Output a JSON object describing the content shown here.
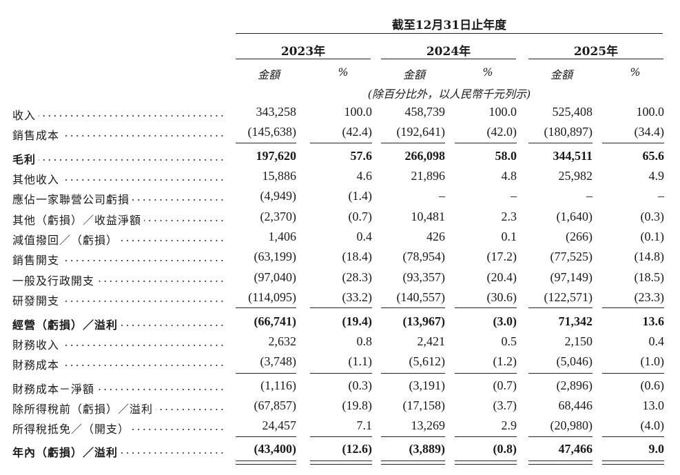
{
  "header": {
    "period": "截至12月31日止年度",
    "years": [
      "2023年",
      "2024年",
      "2025年"
    ],
    "amount_label": "金額",
    "pct_label": "%",
    "note": "(除百分比外，以人民幣千元列示)"
  },
  "rows": [
    {
      "label": "收入",
      "bold": false,
      "values": [
        "343,258",
        "100.0",
        "458,739",
        "100.0",
        "525,408",
        "100.0"
      ]
    },
    {
      "label": "銷售成本",
      "bold": false,
      "values": [
        "(145,638)",
        "(42.4)",
        "(192,641)",
        "(42.0)",
        "(180,897)",
        "(34.4)"
      ]
    },
    {
      "label": "毛利",
      "bold": true,
      "values": [
        "197,620",
        "57.6",
        "266,098",
        "58.0",
        "344,511",
        "65.6"
      ]
    },
    {
      "label": "其他收入",
      "bold": false,
      "values": [
        "15,886",
        "4.6",
        "21,896",
        "4.8",
        "25,982",
        "4.9"
      ]
    },
    {
      "label": "應佔一家聯營公司虧損",
      "bold": false,
      "values": [
        "(4,949)",
        "(1.4)",
        "–",
        "–",
        "–",
        "–"
      ]
    },
    {
      "label": "其他（虧損）／收益淨額",
      "bold": false,
      "values": [
        "(2,370)",
        "(0.7)",
        "10,481",
        "2.3",
        "(1,640)",
        "(0.3)"
      ]
    },
    {
      "label": "減值撥回／（虧損）",
      "bold": false,
      "values": [
        "1,406",
        "0.4",
        "426",
        "0.1",
        "(266)",
        "(0.1)"
      ]
    },
    {
      "label": "銷售開支",
      "bold": false,
      "values": [
        "(63,199)",
        "(18.4)",
        "(78,954)",
        "(17.2)",
        "(77,525)",
        "(14.8)"
      ]
    },
    {
      "label": "一般及行政開支",
      "bold": false,
      "values": [
        "(97,040)",
        "(28.3)",
        "(93,357)",
        "(20.4)",
        "(97,149)",
        "(18.5)"
      ]
    },
    {
      "label": "研發開支",
      "bold": false,
      "values": [
        "(114,095)",
        "(33.2)",
        "(140,557)",
        "(30.6)",
        "(122,571)",
        "(23.3)"
      ]
    },
    {
      "label": "經營（虧損）／溢利",
      "bold": true,
      "values": [
        "(66,741)",
        "(19.4)",
        "(13,967)",
        "(3.0)",
        "71,342",
        "13.6"
      ]
    },
    {
      "label": "財務收入",
      "bold": false,
      "values": [
        "2,632",
        "0.8",
        "2,421",
        "0.5",
        "2,150",
        "0.4"
      ]
    },
    {
      "label": "財務成本",
      "bold": false,
      "values": [
        "(3,748)",
        "(1.1)",
        "(5,612)",
        "(1.2)",
        "(5,046)",
        "(1.0)"
      ]
    },
    {
      "label": "財務成本－淨額",
      "bold": false,
      "values": [
        "(1,116)",
        "(0.3)",
        "(3,191)",
        "(0.7)",
        "(2,896)",
        "(0.6)"
      ]
    },
    {
      "label": "除所得稅前（虧損）／溢利",
      "bold": false,
      "values": [
        "(67,857)",
        "(19.8)",
        "(17,158)",
        "(3.7)",
        "68,446",
        "13.0"
      ]
    },
    {
      "label": "所得稅抵免／（開支）",
      "bold": false,
      "values": [
        "24,457",
        "7.1",
        "13,269",
        "2.9",
        "(20,980)",
        "(4.0)"
      ]
    },
    {
      "label": "年內（虧損）／溢利",
      "bold": true,
      "values": [
        "(43,400)",
        "(12.6)",
        "(3,889)",
        "(0.8)",
        "47,466",
        "9.0"
      ]
    }
  ]
}
